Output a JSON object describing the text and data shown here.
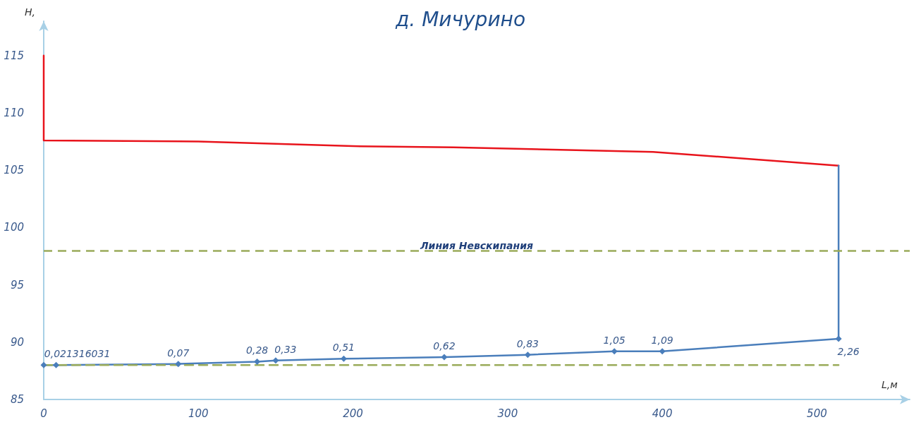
{
  "chart_data": {
    "type": "line",
    "title": "д. Мичурино",
    "xlabel": "L,м",
    "ylabel": "H,",
    "xlim": [
      0,
      560
    ],
    "xticks": [
      0,
      100,
      200,
      300,
      400,
      500
    ],
    "ylim": [
      85,
      118
    ],
    "yticks": [
      85,
      90,
      95,
      100,
      105,
      110,
      115
    ],
    "grid": false,
    "legend": false,
    "series": [
      {
        "color": "#e8141c",
        "line_style": "solid",
        "x": [
          0,
          0,
          100,
          200,
          265,
          394,
          514
        ],
        "values": [
          115,
          107.6,
          107.5,
          107.1,
          107.0,
          106.6,
          105.4
        ]
      },
      {
        "color": "#4a7ebb",
        "line_style": "solid",
        "x": [
          514,
          514
        ],
        "values": [
          105.4,
          90.3
        ]
      },
      {
        "color": "#4a7ebb",
        "marker": "diamond",
        "line_style": "solid",
        "x": [
          0,
          8,
          87,
          138,
          150,
          194,
          259,
          313,
          369,
          400,
          514
        ],
        "values": [
          88.0,
          88.0,
          88.1,
          88.3,
          88.4,
          88.55,
          88.7,
          88.9,
          89.2,
          89.2,
          90.3
        ]
      },
      {
        "color": "#9aab5a",
        "line_style": "dashed",
        "x": [
          0,
          514
        ],
        "values": [
          88,
          88
        ]
      }
    ],
    "annotations": [
      {
        "text": "0,021316031",
        "x": 8,
        "y": 88.0
      },
      {
        "text": "0,07",
        "x": 87,
        "y": 88.1
      },
      {
        "text": "0,28",
        "x": 138,
        "y": 88.3
      },
      {
        "text": "0,33",
        "x": 150,
        "y": 88.4
      },
      {
        "text": "0,51",
        "x": 194,
        "y": 88.55
      },
      {
        "text": "0,62",
        "x": 259,
        "y": 88.7
      },
      {
        "text": "0,83",
        "x": 313,
        "y": 88.9
      },
      {
        "text": "1,05",
        "x": 369,
        "y": 89.2
      },
      {
        "text": "1,09",
        "x": 400,
        "y": 89.2
      },
      {
        "text": "2,26",
        "x": 514,
        "y": 90.3
      }
    ],
    "ref_lines": [
      {
        "axis": "y",
        "value": 98,
        "label": "Линия Невскипания",
        "color": "#9aab5a",
        "line_style": "dashed"
      }
    ]
  }
}
